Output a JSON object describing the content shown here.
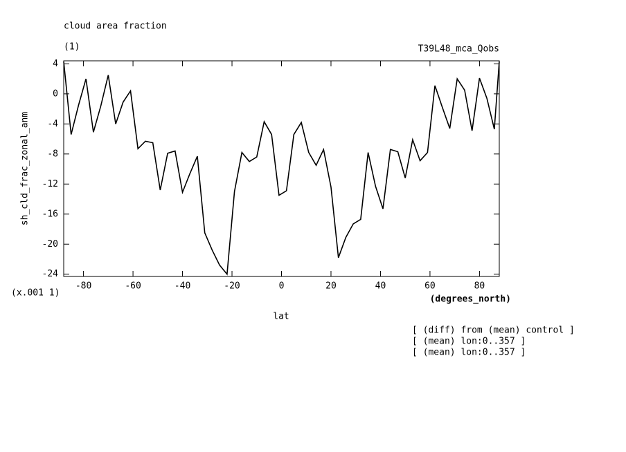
{
  "chart_data": {
    "type": "line",
    "title": "cloud area fraction",
    "subtitle": "(1)",
    "dataset": "T39L48_mca_Qobs",
    "y_label": "sh_cld_frac_zonal_anm",
    "y_units": "(x.001 1)",
    "x_units": "(degrees_north)",
    "x_label": "lat",
    "notes": [
      "[ (diff) from (mean) control ]",
      "[ (mean) lon:0..357 ]",
      "[ (mean) lon:0..357 ]"
    ],
    "x": [
      -88,
      -85,
      -82,
      -79,
      -76,
      -73,
      -70,
      -67,
      -64,
      -61,
      -58,
      -55,
      -52,
      -49,
      -46,
      -43,
      -40,
      -37,
      -34,
      -31,
      -28,
      -25,
      -22,
      -19,
      -16,
      -13,
      -10,
      -7,
      -4,
      -1,
      2,
      5,
      8,
      11,
      14,
      17,
      20,
      23,
      26,
      29,
      32,
      35,
      38,
      41,
      44,
      47,
      50,
      53,
      56,
      59,
      62,
      65,
      68,
      71,
      74,
      77,
      80,
      83,
      86,
      88
    ],
    "series": [
      {
        "name": "sh_cld_frac_zonal_anm",
        "color": "#000000",
        "values": [
          4.3,
          -5.4,
          -1.5,
          2.0,
          -5.1,
          -1.6,
          2.5,
          -4.0,
          -1.1,
          0.4,
          -7.3,
          -6.3,
          -6.5,
          -12.8,
          -7.9,
          -7.6,
          -13.1,
          -10.6,
          -8.3,
          -18.5,
          -20.8,
          -22.8,
          -24,
          -13,
          -7.8,
          -9.0,
          -8.4,
          -3.7,
          -5.4,
          -13.5,
          -12.9,
          -5.4,
          -3.8,
          -7.8,
          -9.5,
          -7.4,
          -12.4,
          -21.8,
          -19.1,
          -17.3,
          -16.7,
          -7.8,
          -12.3,
          -15.3,
          -7.4,
          -7.7,
          -11.2,
          -6.1,
          -8.9,
          -7.8,
          1.1,
          -1.8,
          -4.6,
          2.0,
          0.5,
          -4.9,
          2.1,
          -0.6,
          -4.7,
          4.3
        ]
      }
    ],
    "xlim": [
      -88,
      88
    ],
    "ylim": [
      -24.3,
      4.4
    ],
    "xticks": [
      -80,
      -60,
      -40,
      -20,
      0,
      20,
      40,
      60,
      80
    ],
    "yticks": [
      -24,
      -20,
      -16,
      -12,
      -8,
      -4,
      0,
      4
    ]
  }
}
